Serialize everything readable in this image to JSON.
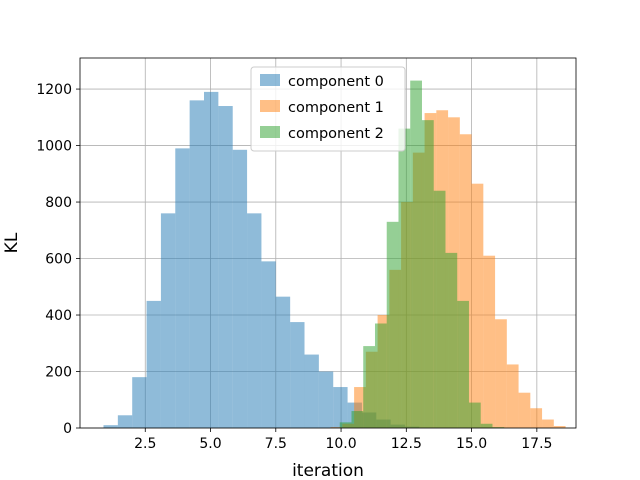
{
  "chart_data": {
    "type": "histogram",
    "xlabel": "iteration",
    "ylabel": "KL",
    "xlim": [
      0.0,
      19.0
    ],
    "ylim": [
      0,
      1310
    ],
    "xticks": [
      2.5,
      5.0,
      7.5,
      10.0,
      12.5,
      15.0,
      17.5
    ],
    "xtick_labels": [
      "2.5",
      "5.0",
      "7.5",
      "10.0",
      "12.5",
      "15.0",
      "17.5"
    ],
    "yticks": [
      0,
      200,
      400,
      600,
      800,
      1000,
      1200
    ],
    "ytick_labels": [
      "0",
      "200",
      "400",
      "600",
      "800",
      "1000",
      "1200"
    ],
    "grid": true,
    "legend_position": "top-center",
    "series": [
      {
        "name": "component 0",
        "color": "#1f77b4",
        "alpha": 0.5,
        "bins": [
          {
            "x0": 0.9,
            "x1": 1.45,
            "y": 10
          },
          {
            "x0": 1.45,
            "x1": 2.0,
            "y": 45
          },
          {
            "x0": 2.0,
            "x1": 2.55,
            "y": 180
          },
          {
            "x0": 2.55,
            "x1": 3.1,
            "y": 450
          },
          {
            "x0": 3.1,
            "x1": 3.65,
            "y": 760
          },
          {
            "x0": 3.65,
            "x1": 4.2,
            "y": 990
          },
          {
            "x0": 4.2,
            "x1": 4.75,
            "y": 1160
          },
          {
            "x0": 4.75,
            "x1": 5.3,
            "y": 1190
          },
          {
            "x0": 5.3,
            "x1": 5.85,
            "y": 1140
          },
          {
            "x0": 5.85,
            "x1": 6.4,
            "y": 985
          },
          {
            "x0": 6.4,
            "x1": 6.95,
            "y": 760
          },
          {
            "x0": 6.95,
            "x1": 7.5,
            "y": 590
          },
          {
            "x0": 7.5,
            "x1": 8.05,
            "y": 465
          },
          {
            "x0": 8.05,
            "x1": 8.6,
            "y": 375
          },
          {
            "x0": 8.6,
            "x1": 9.15,
            "y": 260
          },
          {
            "x0": 9.15,
            "x1": 9.7,
            "y": 200
          },
          {
            "x0": 9.7,
            "x1": 10.25,
            "y": 145
          },
          {
            "x0": 10.25,
            "x1": 10.8,
            "y": 90
          },
          {
            "x0": 10.8,
            "x1": 11.35,
            "y": 55
          },
          {
            "x0": 11.35,
            "x1": 11.9,
            "y": 30
          },
          {
            "x0": 11.9,
            "x1": 12.45,
            "y": 12
          },
          {
            "x0": 12.45,
            "x1": 13.0,
            "y": 5
          }
        ]
      },
      {
        "name": "component 1",
        "color": "#ff7f0e",
        "alpha": 0.5,
        "bins": [
          {
            "x0": 9.6,
            "x1": 10.05,
            "y": 3
          },
          {
            "x0": 10.05,
            "x1": 10.5,
            "y": 15
          },
          {
            "x0": 10.5,
            "x1": 10.95,
            "y": 145
          },
          {
            "x0": 10.95,
            "x1": 11.4,
            "y": 270
          },
          {
            "x0": 11.4,
            "x1": 11.85,
            "y": 400
          },
          {
            "x0": 11.85,
            "x1": 12.3,
            "y": 560
          },
          {
            "x0": 12.3,
            "x1": 12.75,
            "y": 800
          },
          {
            "x0": 12.75,
            "x1": 13.2,
            "y": 975
          },
          {
            "x0": 13.2,
            "x1": 13.65,
            "y": 1115
          },
          {
            "x0": 13.65,
            "x1": 14.1,
            "y": 1125
          },
          {
            "x0": 14.1,
            "x1": 14.55,
            "y": 1100
          },
          {
            "x0": 14.55,
            "x1": 15.0,
            "y": 1040
          },
          {
            "x0": 15.0,
            "x1": 15.45,
            "y": 865
          },
          {
            "x0": 15.45,
            "x1": 15.9,
            "y": 610
          },
          {
            "x0": 15.9,
            "x1": 16.35,
            "y": 385
          },
          {
            "x0": 16.35,
            "x1": 16.8,
            "y": 225
          },
          {
            "x0": 16.8,
            "x1": 17.25,
            "y": 125
          },
          {
            "x0": 17.25,
            "x1": 17.7,
            "y": 70
          },
          {
            "x0": 17.7,
            "x1": 18.15,
            "y": 30
          },
          {
            "x0": 18.15,
            "x1": 18.6,
            "y": 7
          }
        ]
      },
      {
        "name": "component 2",
        "color": "#2ca02c",
        "alpha": 0.5,
        "bins": [
          {
            "x0": 9.95,
            "x1": 10.4,
            "y": 20
          },
          {
            "x0": 10.4,
            "x1": 10.85,
            "y": 60
          },
          {
            "x0": 10.85,
            "x1": 11.3,
            "y": 290
          },
          {
            "x0": 11.3,
            "x1": 11.75,
            "y": 370
          },
          {
            "x0": 11.75,
            "x1": 12.2,
            "y": 730
          },
          {
            "x0": 12.2,
            "x1": 12.65,
            "y": 1060
          },
          {
            "x0": 12.65,
            "x1": 13.1,
            "y": 1230
          },
          {
            "x0": 13.1,
            "x1": 13.55,
            "y": 1090
          },
          {
            "x0": 13.55,
            "x1": 14.0,
            "y": 840
          },
          {
            "x0": 14.0,
            "x1": 14.45,
            "y": 620
          },
          {
            "x0": 14.45,
            "x1": 14.9,
            "y": 450
          },
          {
            "x0": 14.9,
            "x1": 15.35,
            "y": 90
          },
          {
            "x0": 15.35,
            "x1": 15.8,
            "y": 15
          },
          {
            "x0": 15.8,
            "x1": 16.25,
            "y": 3
          }
        ]
      }
    ]
  }
}
